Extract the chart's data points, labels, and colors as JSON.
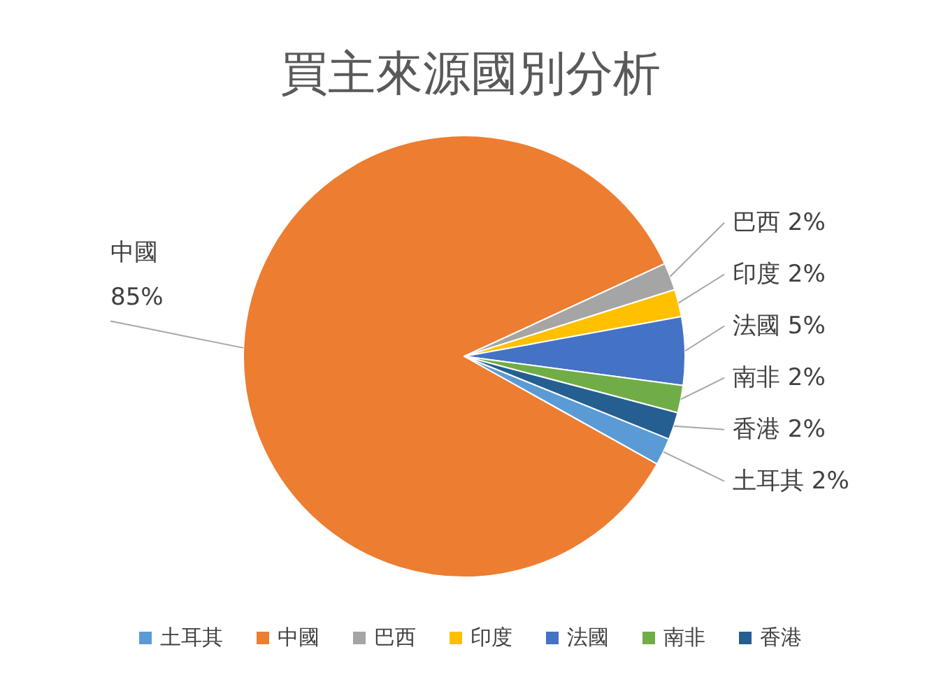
{
  "chart_data": {
    "type": "pie",
    "title": "買主來源國別分析",
    "categories": [
      "土耳其",
      "中國",
      "巴西",
      "印度",
      "法國",
      "南非",
      "香港"
    ],
    "values": [
      2,
      85,
      2,
      2,
      5,
      2,
      2
    ],
    "value_labels": [
      "2%",
      "85%",
      "2%",
      "2%",
      "5%",
      "2%",
      "2%"
    ],
    "colors": [
      "#5b9bd5",
      "#ed7d31",
      "#a5a5a5",
      "#ffc000",
      "#4472c4",
      "#70ad47",
      "#255e91"
    ],
    "legend": "bottom"
  }
}
